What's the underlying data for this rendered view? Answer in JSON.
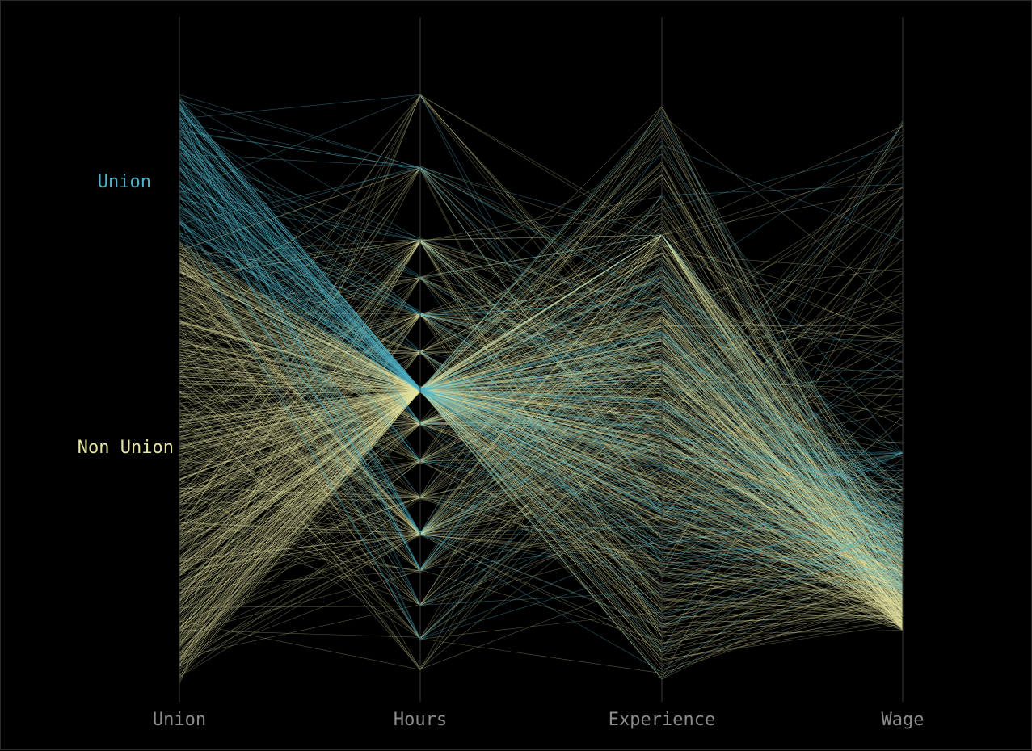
{
  "chart_data": {
    "type": "parallel-coordinates",
    "background": "#000000",
    "axes": [
      {
        "key": "union",
        "label": "Union",
        "kind": "categorical"
      },
      {
        "key": "hours",
        "label": "Hours",
        "kind": "numeric"
      },
      {
        "key": "experience",
        "label": "Experience",
        "kind": "numeric"
      },
      {
        "key": "wage",
        "label": "Wage",
        "kind": "numeric"
      }
    ],
    "union_categories": [
      {
        "key": "union",
        "label": "Union",
        "color": "#4fb3c8"
      },
      {
        "key": "nonunion",
        "label": "Non Union",
        "color": "#e6e4a3"
      }
    ],
    "approximate_record_count": {
      "union": 150,
      "nonunion": 650
    },
    "grid": false,
    "legend": "category labels beside the Union axis"
  }
}
